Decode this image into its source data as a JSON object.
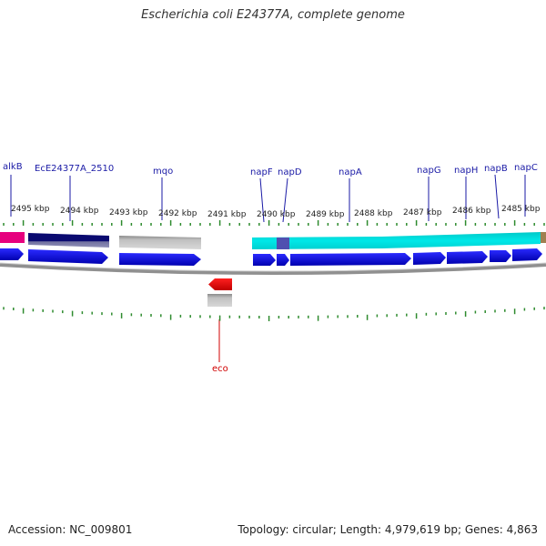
{
  "title": "Escherichia coli E24377A, complete genome",
  "footer": {
    "accession": "Accession: NC_009801",
    "summary": "Topology: circular; Length: 4,979,619 bp; Genes: 4,863"
  },
  "scale_labels": [
    "2495 kbp",
    "2494 kbp",
    "2493 kbp",
    "2492 kbp",
    "2491 kbp",
    "2490 kbp",
    "2489 kbp",
    "2488 kbp",
    "2487 kbp",
    "2486 kbp",
    "2485 kbp"
  ],
  "genes": [
    {
      "label": "alkB"
    },
    {
      "label": "EcE24377A_2510"
    },
    {
      "label": "mqo"
    },
    {
      "label": "napF"
    },
    {
      "label": "napD"
    },
    {
      "label": "napA"
    },
    {
      "label": "napG"
    },
    {
      "label": "napH"
    },
    {
      "label": "napB"
    },
    {
      "label": "napC"
    },
    {
      "label": "eco"
    }
  ],
  "colors": {
    "cds": "#0a0adc",
    "cds_dark": "#0a0a6e",
    "cyan": "#00dcdc",
    "gray": "#bdbdbd",
    "magenta": "#e6007e",
    "red": "#ee0000",
    "tick": "#2e8b2e",
    "backbone": "#888888",
    "label": "#1a1aa6"
  }
}
